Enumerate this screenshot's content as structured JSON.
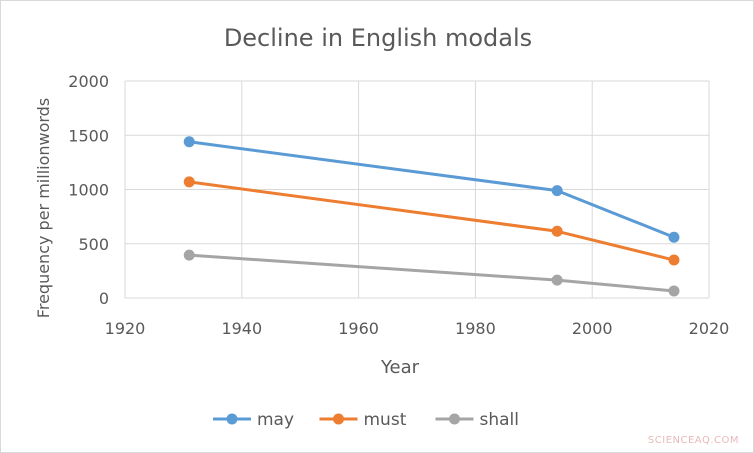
{
  "chart_data": {
    "type": "line",
    "title": "Decline in English modals",
    "xlabel": "Year",
    "ylabel": "Frequency per millionwords",
    "xlim": [
      1920,
      2020
    ],
    "ylim": [
      0,
      2000
    ],
    "xticks": [
      1920,
      1940,
      1960,
      1980,
      2000,
      2020
    ],
    "yticks": [
      0,
      500,
      1000,
      1500,
      2000
    ],
    "grid": true,
    "legend_position": "bottom",
    "series": [
      {
        "name": "may",
        "color": "#5b9bd5",
        "points": [
          [
            1931,
            1440
          ],
          [
            1994,
            990
          ],
          [
            2014,
            560
          ]
        ]
      },
      {
        "name": "must",
        "color": "#ed7d31",
        "points": [
          [
            1931,
            1070
          ],
          [
            1994,
            615
          ],
          [
            2014,
            350
          ]
        ]
      },
      {
        "name": "shall",
        "color": "#a5a5a5",
        "points": [
          [
            1931,
            395
          ],
          [
            1994,
            165
          ],
          [
            2014,
            65
          ]
        ]
      }
    ]
  },
  "watermark": "SCIENCEAQ.COM"
}
